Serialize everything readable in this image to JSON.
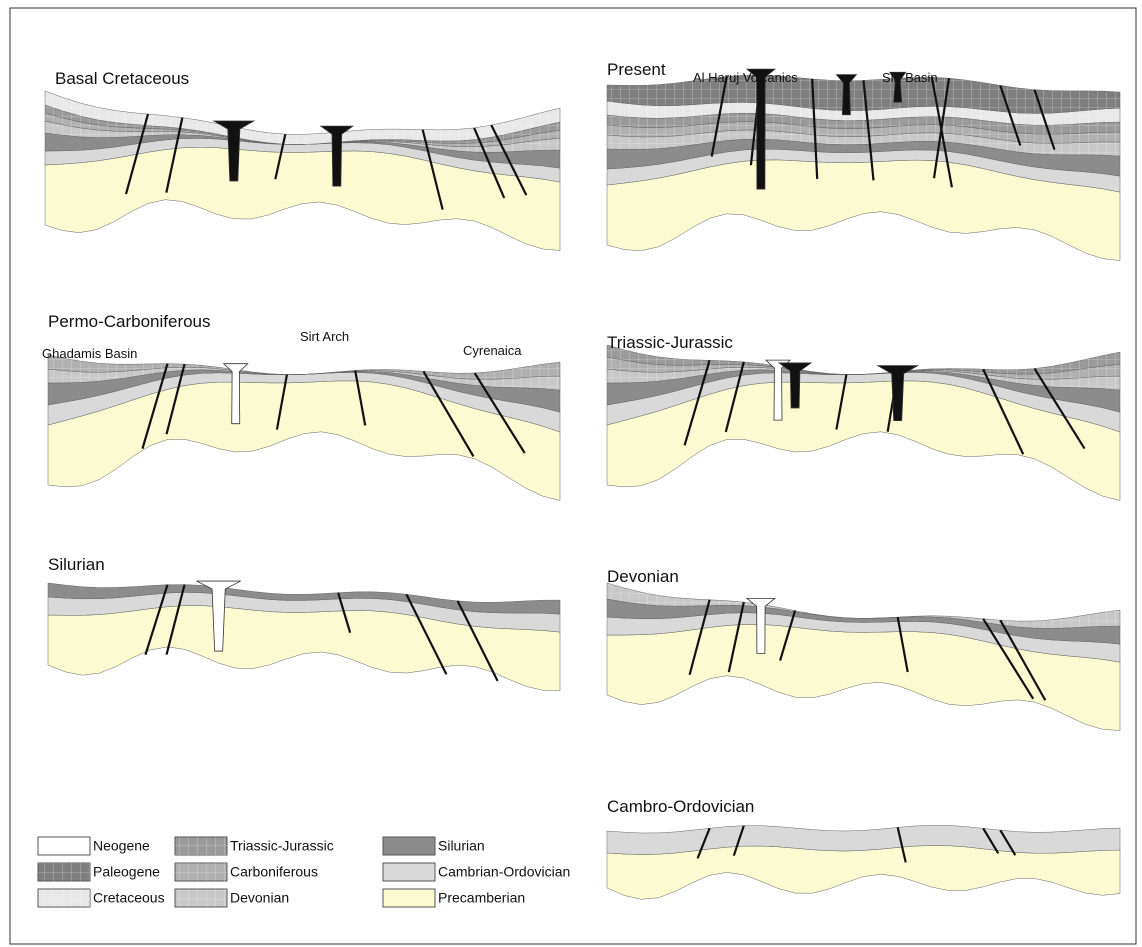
{
  "panels": [
    {
      "title": "Basal Cretaceous"
    },
    {
      "title": "Present",
      "labels": [
        "Al Haruj Volcanics",
        "Sirt Basin"
      ]
    },
    {
      "title": "Permo-Carboniferous",
      "labels": [
        "Ghadamis Basin",
        "Sirt Arch",
        "Cyrenaica"
      ]
    },
    {
      "title": "Triassic-Jurassic"
    },
    {
      "title": "Silurian"
    },
    {
      "title": "Devonian"
    },
    {
      "title": "Cambro-Ordovician"
    }
  ],
  "legend": [
    "Neogene",
    "Paleogene",
    "Cretaceous",
    "Triassic-Jurassic",
    "Carboniferous",
    "Devonian",
    "Silurian",
    "Cambrian-Ordovician",
    "Precamberian"
  ]
}
